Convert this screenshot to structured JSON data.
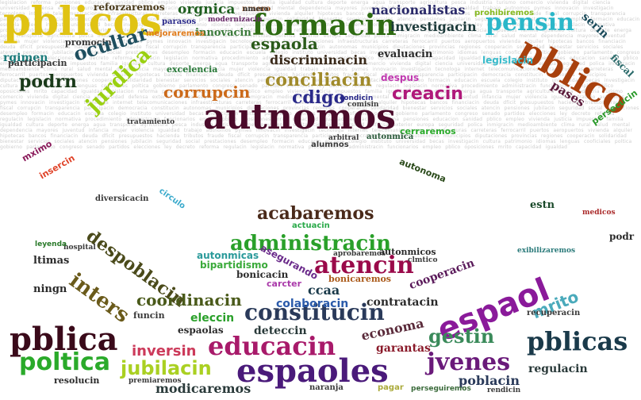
{
  "words": [
    {
      "text": "pblicos",
      "color": "#e0c314"
    },
    {
      "text": "reforzaremos",
      "color": "#4a3a1a"
    },
    {
      "text": "orgnica",
      "color": "#1f5f1f"
    },
    {
      "text": "nmero",
      "color": "#8a4a1a"
    },
    {
      "text": "nacionalistas",
      "color": "#2a2a6a"
    },
    {
      "text": "prohibiremos",
      "color": "#88bb22"
    },
    {
      "text": "formacin",
      "color": "#2e6b12"
    },
    {
      "text": "pensin",
      "color": "#2bb7c9"
    },
    {
      "text": "investigacin",
      "color": "#1c3a3a"
    },
    {
      "text": "parasos",
      "color": "#2a2a8a"
    },
    {
      "text": "modernizacin",
      "color": "#6a2a6a"
    },
    {
      "text": "innovacin",
      "color": "#3a7a3a"
    },
    {
      "text": "mejoraremos",
      "color": "#e07b1a"
    },
    {
      "text": "promocin",
      "color": "#3a3a3a"
    },
    {
      "text": "ocultar",
      "color": "#1f4f5f"
    },
    {
      "text": "espaola",
      "color": "#2a5a1a"
    },
    {
      "text": "pblico",
      "color": "#a8400d"
    },
    {
      "text": "rgimen",
      "color": "#1a7a7a"
    },
    {
      "text": "jurdica",
      "color": "#9ad011"
    },
    {
      "text": "discriminacin",
      "color": "#3a2a1a"
    },
    {
      "text": "evaluacin",
      "color": "#2a2a2a"
    },
    {
      "text": "legislacin",
      "color": "#3abccc"
    },
    {
      "text": "serin",
      "color": "#1a4a5a"
    },
    {
      "text": "fiscal",
      "color": "#2a6a6a"
    },
    {
      "text": "podrn",
      "color": "#1a3a1a"
    },
    {
      "text": "participacin",
      "color": "#3a3a3a"
    },
    {
      "text": "excelencia",
      "color": "#2a7a3a"
    },
    {
      "text": "conciliacin",
      "color": "#a08a2a"
    },
    {
      "text": "despus",
      "color": "#c03ab0"
    },
    {
      "text": "pases",
      "color": "#5a1a3a"
    },
    {
      "text": "corrupcin",
      "color": "#cc6a1a"
    },
    {
      "text": "cdigo",
      "color": "#2a2a8a"
    },
    {
      "text": "creacin",
      "color": "#b01a7a"
    },
    {
      "text": "autnomos",
      "color": "#4a0a2a"
    },
    {
      "text": "persecucin",
      "color": "#2a9a2a"
    },
    {
      "text": "mximo",
      "color": "#8a1a5a"
    },
    {
      "text": "insercin",
      "color": "#e0442a"
    },
    {
      "text": "alumnos",
      "color": "#3a3a3a"
    },
    {
      "text": "autonoma",
      "color": "#2a4a1a"
    },
    {
      "text": "gestin",
      "color": "#3a8a5a"
    },
    {
      "text": "estn",
      "color": "#1a4a2a"
    },
    {
      "text": "acabaremos",
      "color": "#4a2a1a"
    },
    {
      "text": "administracin",
      "color": "#2aa02a"
    },
    {
      "text": "despoblacin",
      "color": "#4a4a1a"
    },
    {
      "text": "atencin",
      "color": "#9a0a4a"
    },
    {
      "text": "autonmicas",
      "color": "#2a9a9a"
    },
    {
      "text": "bipartidismo",
      "color": "#3aaa3a"
    },
    {
      "text": "asegurando",
      "color": "#6a2a8a"
    },
    {
      "text": "bonicacin",
      "color": "#2a2a2a"
    },
    {
      "text": "cooperacin",
      "color": "#5a1a5a"
    },
    {
      "text": "nmero",
      "color": "#3a3a3a"
    },
    {
      "text": "coordinacin",
      "color": "#4a5a1a"
    },
    {
      "text": "inters",
      "color": "#6a5a1a"
    },
    {
      "text": "ccaa",
      "color": "#1a3a4a"
    },
    {
      "text": "contratacin",
      "color": "#2a2a2a"
    },
    {
      "text": "espaol",
      "color": "#8a1a9a"
    },
    {
      "text": "mrito",
      "color": "#4aaabb"
    },
    {
      "text": "constitucin",
      "color": "#2a3a5a"
    },
    {
      "text": "colaboracin",
      "color": "#2a5aaa"
    },
    {
      "text": "eleccin",
      "color": "#2aa02a"
    },
    {
      "text": "pblica",
      "color": "#3a0a1a"
    },
    {
      "text": "poltica",
      "color": "#2aaa2a"
    },
    {
      "text": "inversin",
      "color": "#cc3a5a"
    },
    {
      "text": "educacin",
      "color": "#a81a6a"
    },
    {
      "text": "economa",
      "color": "#5a2a3a"
    },
    {
      "text": "garantas",
      "color": "#8a1a2a"
    },
    {
      "text": "pblicas",
      "color": "#1a3a4a"
    },
    {
      "text": "jubilacin",
      "color": "#aad022"
    },
    {
      "text": "espaoles",
      "color": "#4a1a7a"
    },
    {
      "text": "jvenes",
      "color": "#6a1a7a"
    },
    {
      "text": "regulacin",
      "color": "#2a3a3a"
    },
    {
      "text": "poblacin",
      "color": "#2a3a5a"
    },
    {
      "text": "modicaremos",
      "color": "#2a3a3a"
    },
    {
      "text": "resolucin",
      "color": "#2a2a2a"
    },
    {
      "text": "premiaremos",
      "color": "#3a3a3a"
    },
    {
      "text": "espaolas",
      "color": "#2a2a2a"
    },
    {
      "text": "deteccin",
      "color": "#2a3a3a"
    },
    {
      "text": "ltimas",
      "color": "#2a2a2a"
    },
    {
      "text": "ningn",
      "color": "#2a2a2a"
    },
    {
      "text": "actuacin",
      "color": "#2aaa4a"
    },
    {
      "text": "aprobaremos",
      "color": "#3a3a3a"
    },
    {
      "text": "carcter",
      "color": "#aa3aaa"
    },
    {
      "text": "bonicaremos",
      "color": "#aa5a1a"
    },
    {
      "text": "funcin",
      "color": "#3a3a3a"
    },
    {
      "text": "diversicacin",
      "color": "#3a3a3a"
    },
    {
      "text": "cerraremos",
      "color": "#2aaa2a"
    },
    {
      "text": "tratamiento",
      "color": "#3a3a3a"
    },
    {
      "text": "recuperacin",
      "color": "#3a3a3a"
    },
    {
      "text": "podr",
      "color": "#2a2a2a"
    },
    {
      "text": "naranja",
      "color": "#3a3a3a"
    },
    {
      "text": "pagar",
      "color": "#aaaa3a"
    },
    {
      "text": "perseguiremos",
      "color": "#3a6a3a"
    },
    {
      "text": "rendicin",
      "color": "#3a3a3a"
    },
    {
      "text": "circulo",
      "color": "#3aaacc"
    },
    {
      "text": "comisin",
      "color": "#3a3a3a"
    },
    {
      "text": "condicin",
      "color": "#2a2a8a"
    },
    {
      "text": "autonmica",
      "color": "#2a5a3a"
    },
    {
      "text": "arbitral",
      "color": "#3a3a3a"
    },
    {
      "text": "clmtico",
      "color": "#3a3a3a"
    },
    {
      "text": "autonmicos",
      "color": "#2a2a2a"
    },
    {
      "text": "medicos",
      "color": "#aa2a2a"
    },
    {
      "text": "exibilizaremos",
      "color": "#2a7a7a"
    },
    {
      "text": "hospital",
      "color": "#3a3a3a"
    },
    {
      "text": "leyenda",
      "color": "#2a7a2a"
    }
  ]
}
